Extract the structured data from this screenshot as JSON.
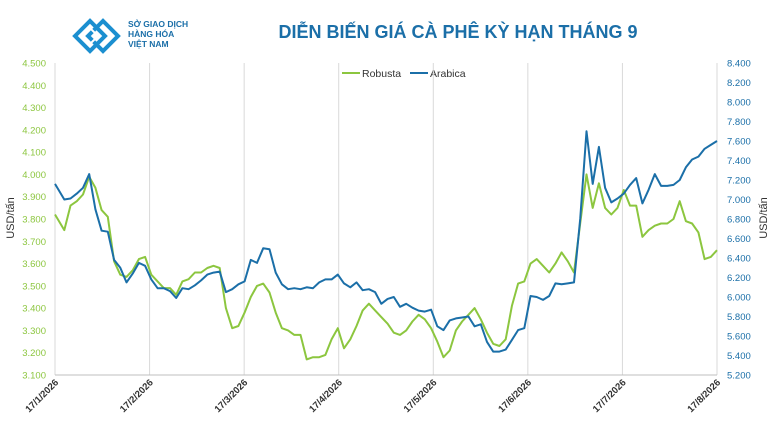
{
  "logo": {
    "line1": "SỞ GIAO DỊCH",
    "line2": "HÀNG HÓA",
    "line3": "VIỆT NAM"
  },
  "chart_data": {
    "type": "line",
    "title": "DIỄN BIẾN GIÁ CÀ PHÊ KỲ HẠN THÁNG 9",
    "x_ticks": [
      "17/1/2026",
      "17/2/2026",
      "17/3/2026",
      "17/4/2026",
      "17/5/2026",
      "17/6/2026",
      "17/7/2026",
      "17/8/2026"
    ],
    "y_left": {
      "label": "USD/tấn",
      "min": 3100,
      "max": 4500,
      "ticks": [
        "3.100",
        "3.200",
        "3.300",
        "3.400",
        "3.500",
        "3.600",
        "3.700",
        "3.800",
        "3.900",
        "4.000",
        "4.100",
        "4.200",
        "4.300",
        "4.400",
        "4.500"
      ]
    },
    "y_right": {
      "label": "USD/tấn",
      "min": 5200,
      "max": 8400,
      "ticks": [
        "5.200",
        "5.400",
        "5.600",
        "5.800",
        "6.000",
        "6.200",
        "6.400",
        "6.600",
        "6.800",
        "7.000",
        "7.200",
        "7.400",
        "7.600",
        "7.800",
        "8.000",
        "8.200",
        "8.400"
      ]
    },
    "grid": "vertical",
    "legend_position": "top-center",
    "colors": {
      "robusta": "#8cc63f",
      "arabica": "#1b6fa8",
      "left_axis_text": "#8cc63f",
      "right_axis_text": "#1b6fa8",
      "title": "#1b6fa8"
    },
    "series": [
      {
        "name": "Robusta",
        "axis": "left",
        "color": "#8cc63f",
        "points": [
          [
            0,
            3820
          ],
          [
            3,
            3750
          ],
          [
            5,
            3860
          ],
          [
            7,
            3880
          ],
          [
            9,
            3910
          ],
          [
            11,
            3990
          ],
          [
            13,
            3940
          ],
          [
            15,
            3840
          ],
          [
            17,
            3810
          ],
          [
            19,
            3610
          ],
          [
            21,
            3550
          ],
          [
            23,
            3540
          ],
          [
            25,
            3570
          ],
          [
            27,
            3620
          ],
          [
            29,
            3630
          ],
          [
            31,
            3550
          ],
          [
            33,
            3520
          ],
          [
            35,
            3490
          ],
          [
            37,
            3490
          ],
          [
            39,
            3460
          ],
          [
            41,
            3520
          ],
          [
            43,
            3530
          ],
          [
            45,
            3560
          ],
          [
            47,
            3560
          ],
          [
            49,
            3580
          ],
          [
            51,
            3590
          ],
          [
            53,
            3580
          ],
          [
            55,
            3400
          ],
          [
            57,
            3310
          ],
          [
            59,
            3320
          ],
          [
            61,
            3380
          ],
          [
            63,
            3450
          ],
          [
            65,
            3500
          ],
          [
            67,
            3510
          ],
          [
            69,
            3470
          ],
          [
            71,
            3380
          ],
          [
            73,
            3310
          ],
          [
            75,
            3300
          ],
          [
            77,
            3280
          ],
          [
            79,
            3280
          ],
          [
            81,
            3170
          ],
          [
            83,
            3180
          ],
          [
            85,
            3180
          ],
          [
            87,
            3190
          ],
          [
            89,
            3260
          ],
          [
            91,
            3310
          ],
          [
            93,
            3220
          ],
          [
            95,
            3260
          ],
          [
            97,
            3320
          ],
          [
            99,
            3390
          ],
          [
            101,
            3420
          ],
          [
            103,
            3390
          ],
          [
            105,
            3360
          ],
          [
            107,
            3330
          ],
          [
            109,
            3290
          ],
          [
            111,
            3280
          ],
          [
            113,
            3300
          ],
          [
            115,
            3340
          ],
          [
            117,
            3370
          ],
          [
            119,
            3350
          ],
          [
            121,
            3310
          ],
          [
            123,
            3250
          ],
          [
            125,
            3180
          ],
          [
            127,
            3210
          ],
          [
            129,
            3300
          ],
          [
            131,
            3340
          ],
          [
            133,
            3370
          ],
          [
            135,
            3400
          ],
          [
            137,
            3350
          ],
          [
            139,
            3290
          ],
          [
            141,
            3240
          ],
          [
            143,
            3230
          ],
          [
            145,
            3260
          ],
          [
            147,
            3410
          ],
          [
            149,
            3510
          ],
          [
            151,
            3520
          ],
          [
            153,
            3600
          ],
          [
            155,
            3620
          ],
          [
            157,
            3590
          ],
          [
            159,
            3560
          ],
          [
            161,
            3600
          ],
          [
            163,
            3650
          ],
          [
            165,
            3610
          ],
          [
            167,
            3560
          ],
          [
            169,
            3780
          ],
          [
            171,
            4000
          ],
          [
            173,
            3850
          ],
          [
            175,
            3960
          ],
          [
            177,
            3850
          ],
          [
            179,
            3820
          ],
          [
            181,
            3850
          ],
          [
            183,
            3930
          ],
          [
            185,
            3860
          ],
          [
            187,
            3860
          ],
          [
            189,
            3720
          ],
          [
            191,
            3750
          ],
          [
            193,
            3770
          ],
          [
            195,
            3780
          ],
          [
            197,
            3780
          ],
          [
            199,
            3800
          ],
          [
            201,
            3880
          ],
          [
            203,
            3790
          ],
          [
            205,
            3780
          ],
          [
            207,
            3740
          ],
          [
            209,
            3620
          ],
          [
            211,
            3630
          ],
          [
            213,
            3660
          ]
        ]
      },
      {
        "name": "Arabica",
        "axis": "right",
        "color": "#1b6fa8",
        "points": [
          [
            0,
            7160
          ],
          [
            3,
            7000
          ],
          [
            5,
            7010
          ],
          [
            7,
            7060
          ],
          [
            9,
            7120
          ],
          [
            11,
            7260
          ],
          [
            13,
            6900
          ],
          [
            15,
            6680
          ],
          [
            17,
            6670
          ],
          [
            19,
            6380
          ],
          [
            21,
            6300
          ],
          [
            23,
            6150
          ],
          [
            25,
            6240
          ],
          [
            27,
            6350
          ],
          [
            29,
            6320
          ],
          [
            31,
            6180
          ],
          [
            33,
            6090
          ],
          [
            35,
            6090
          ],
          [
            37,
            6060
          ],
          [
            39,
            5990
          ],
          [
            41,
            6090
          ],
          [
            43,
            6080
          ],
          [
            45,
            6120
          ],
          [
            47,
            6170
          ],
          [
            49,
            6230
          ],
          [
            51,
            6250
          ],
          [
            53,
            6260
          ],
          [
            55,
            6050
          ],
          [
            57,
            6080
          ],
          [
            59,
            6130
          ],
          [
            61,
            6160
          ],
          [
            63,
            6380
          ],
          [
            65,
            6350
          ],
          [
            67,
            6500
          ],
          [
            69,
            6490
          ],
          [
            71,
            6250
          ],
          [
            73,
            6130
          ],
          [
            75,
            6080
          ],
          [
            77,
            6090
          ],
          [
            79,
            6080
          ],
          [
            81,
            6100
          ],
          [
            83,
            6090
          ],
          [
            85,
            6150
          ],
          [
            87,
            6180
          ],
          [
            89,
            6180
          ],
          [
            91,
            6230
          ],
          [
            93,
            6140
          ],
          [
            95,
            6100
          ],
          [
            97,
            6150
          ],
          [
            99,
            6070
          ],
          [
            101,
            6080
          ],
          [
            103,
            6050
          ],
          [
            105,
            5930
          ],
          [
            107,
            5980
          ],
          [
            109,
            6000
          ],
          [
            111,
            5900
          ],
          [
            113,
            5930
          ],
          [
            115,
            5890
          ],
          [
            117,
            5860
          ],
          [
            119,
            5850
          ],
          [
            121,
            5870
          ],
          [
            123,
            5700
          ],
          [
            125,
            5660
          ],
          [
            127,
            5760
          ],
          [
            129,
            5780
          ],
          [
            131,
            5790
          ],
          [
            133,
            5800
          ],
          [
            135,
            5700
          ],
          [
            137,
            5720
          ],
          [
            139,
            5540
          ],
          [
            141,
            5440
          ],
          [
            143,
            5440
          ],
          [
            145,
            5460
          ],
          [
            147,
            5560
          ],
          [
            149,
            5660
          ],
          [
            151,
            5680
          ],
          [
            153,
            6010
          ],
          [
            155,
            6000
          ],
          [
            157,
            5970
          ],
          [
            159,
            6010
          ],
          [
            161,
            6140
          ],
          [
            163,
            6130
          ],
          [
            165,
            6140
          ],
          [
            167,
            6150
          ],
          [
            169,
            6800
          ],
          [
            171,
            7700
          ],
          [
            173,
            7160
          ],
          [
            175,
            7540
          ],
          [
            177,
            7120
          ],
          [
            179,
            6970
          ],
          [
            181,
            7010
          ],
          [
            183,
            7060
          ],
          [
            185,
            7150
          ],
          [
            187,
            7220
          ],
          [
            189,
            6960
          ],
          [
            191,
            7100
          ],
          [
            193,
            7260
          ],
          [
            195,
            7140
          ],
          [
            197,
            7140
          ],
          [
            199,
            7150
          ],
          [
            201,
            7200
          ],
          [
            203,
            7330
          ],
          [
            205,
            7410
          ],
          [
            207,
            7440
          ],
          [
            209,
            7520
          ],
          [
            211,
            7560
          ],
          [
            213,
            7600
          ]
        ]
      }
    ]
  }
}
